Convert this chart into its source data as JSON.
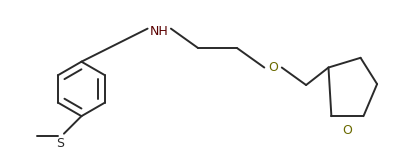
{
  "line_color": "#2a2a2a",
  "label_color_NH": "#5a0000",
  "label_color_O": "#6a6a00",
  "label_color_S": "#2a2a2a",
  "bg_color": "#ffffff",
  "NH_label": "NH",
  "O_label1": "O",
  "O_label2": "O",
  "S_label": "S",
  "linewidth": 1.4
}
